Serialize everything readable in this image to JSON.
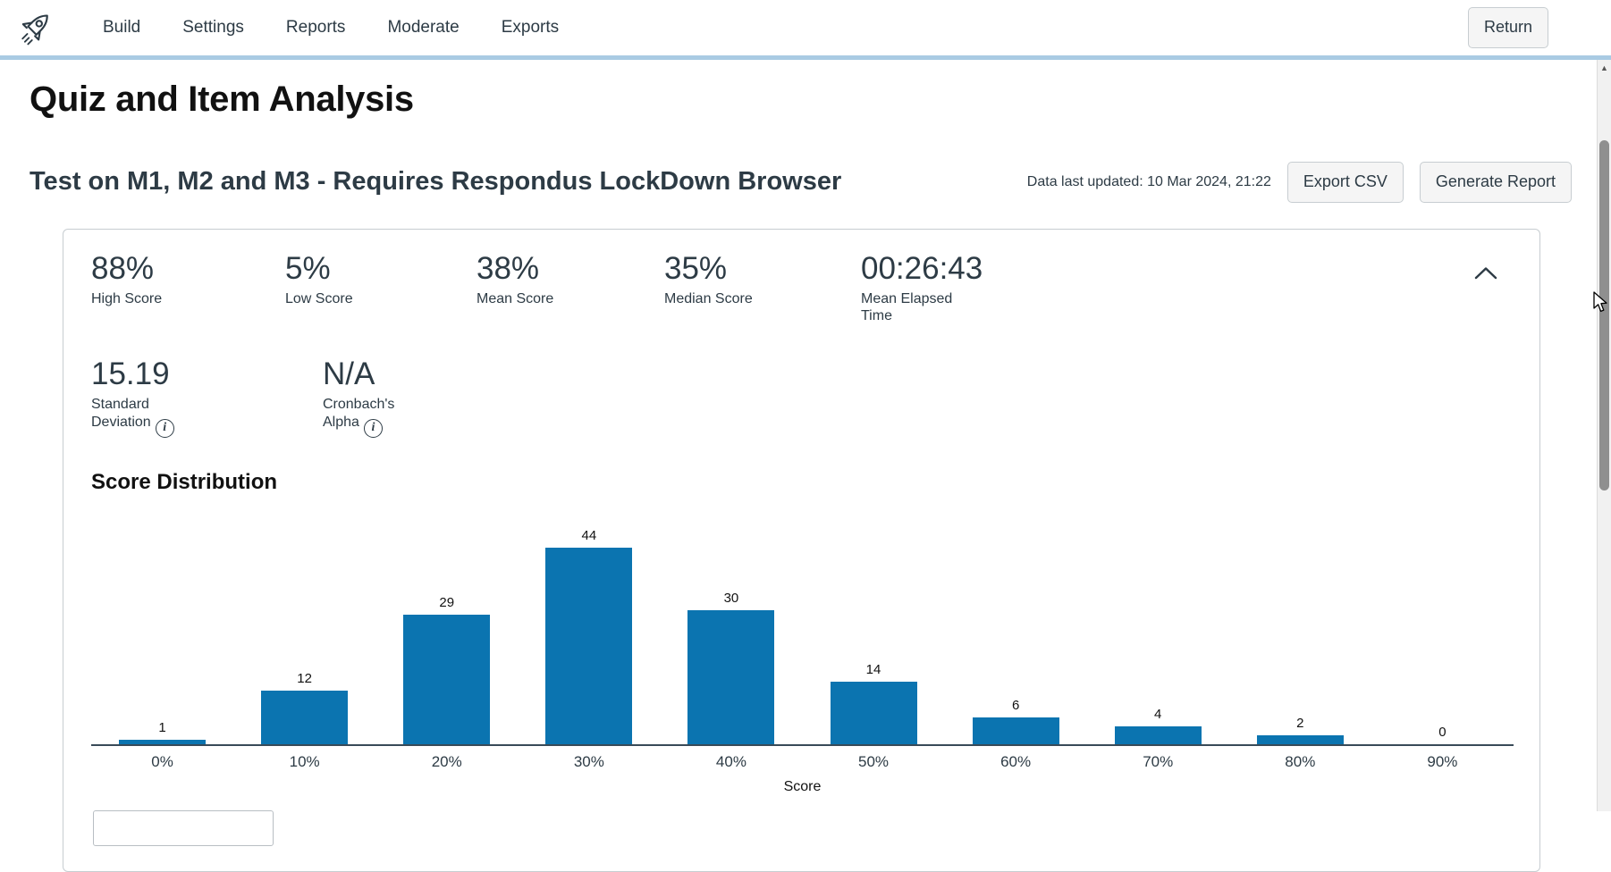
{
  "colors": {
    "bar_blue": "#0b74b0",
    "divider_blue": "#a9cbe3",
    "text_dark": "#2d3b45"
  },
  "nav": {
    "brand_icon": "rocket-icon",
    "items": [
      {
        "label": "Build"
      },
      {
        "label": "Settings"
      },
      {
        "label": "Reports"
      },
      {
        "label": "Moderate"
      },
      {
        "label": "Exports"
      }
    ],
    "return_label": "Return"
  },
  "page": {
    "title": "Quiz and Item Analysis",
    "quiz_title": "Test on M1, M2 and M3 - Requires Respondus LockDown Browser",
    "last_updated": "Data last updated: 10 Mar 2024, 21:22",
    "export_csv_label": "Export CSV",
    "generate_report_label": "Generate Report"
  },
  "summary": {
    "collapse_icon": "chevron-up-icon",
    "stats": [
      {
        "value": "88%",
        "label": "High Score"
      },
      {
        "value": "5%",
        "label": "Low Score"
      },
      {
        "value": "38%",
        "label": "Mean Score"
      },
      {
        "value": "35%",
        "label": "Median Score"
      },
      {
        "value": "00:26:43",
        "label": "Mean Elapsed Time"
      },
      {
        "value": "15.19",
        "label": "Standard Deviation",
        "info_icon": "info-icon"
      },
      {
        "value": "N/A",
        "label": "Cronbach's Alpha",
        "info_icon": "info-icon"
      }
    ]
  },
  "chart_data": {
    "type": "bar",
    "title": "Score Distribution",
    "categories": [
      "0%",
      "10%",
      "20%",
      "30%",
      "40%",
      "50%",
      "60%",
      "70%",
      "80%",
      "90%"
    ],
    "values": [
      1,
      12,
      29,
      44,
      30,
      14,
      6,
      4,
      2,
      0
    ],
    "xlabel": "Score",
    "ylabel": "",
    "ylim": [
      0,
      46
    ],
    "grid": false,
    "data_labels": true,
    "legend": "none",
    "bar_color": "#0b74b0"
  }
}
